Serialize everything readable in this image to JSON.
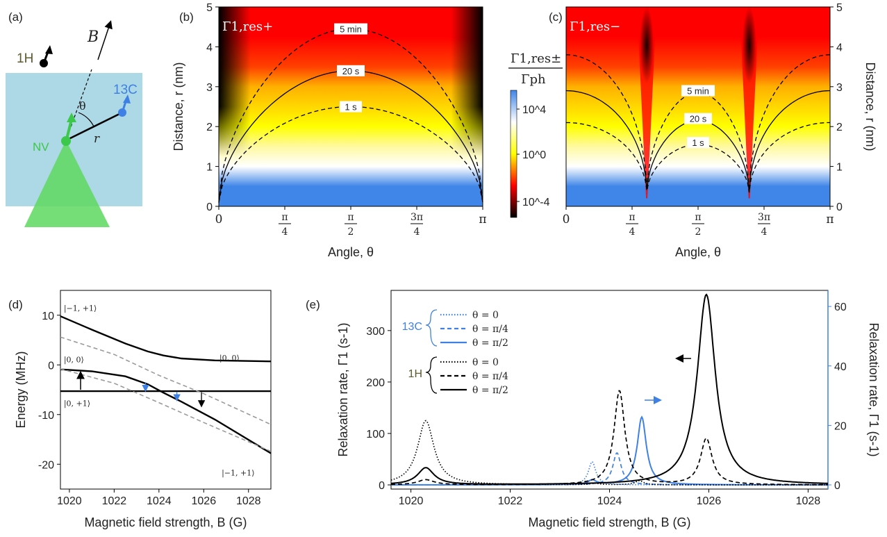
{
  "colors": {
    "black": "#000000",
    "blue": "#3f80e4",
    "olive": "#5b5b2f",
    "green": "#3cc84a",
    "gray_dash": "#9a9a9a",
    "cmap": [
      "#000000",
      "#ff0000",
      "#ffff00",
      "#ffffff",
      "#3f86e8"
    ]
  },
  "panels": {
    "a": {
      "label": "(a)",
      "h": "1H",
      "c": "13C",
      "nv": "NV",
      "b": "B",
      "theta": "θ",
      "r": "r"
    },
    "b": {
      "label": "(b)",
      "map_label": "Γ1,res+"
    },
    "c": {
      "label": "(c)",
      "map_label": "Γ1,res−"
    },
    "d": {
      "label": "(d)"
    },
    "e": {
      "label": "(e)"
    }
  },
  "colorbar": {
    "numerator": "Γ1,res±",
    "denominator": "Γph",
    "ticks": [
      "10^4",
      "10^0",
      "10^-4"
    ]
  },
  "chart_data": [
    {
      "panel": "b",
      "type": "heatmap",
      "xlabel": "Angle, θ",
      "ylabel": "Distance, r (nm)",
      "x_ticks": [
        "0",
        "π/4",
        "π/2",
        "3π/4",
        "π"
      ],
      "y_ticks": [
        "0",
        "1",
        "2",
        "3",
        "4",
        "5"
      ],
      "xlim": [
        0,
        3.14159
      ],
      "ylim": [
        0,
        5
      ],
      "contours": [
        {
          "label": "5 min",
          "style": "dashed",
          "peak_r": 4.35
        },
        {
          "label": "20 s",
          "style": "solid",
          "peak_r": 3.3
        },
        {
          "label": "1 s",
          "style": "dashed",
          "peak_r": 2.4
        }
      ]
    },
    {
      "panel": "c",
      "type": "heatmap",
      "xlabel": "Angle, θ",
      "ylabel": "Distance, r (nm)",
      "x_ticks": [
        "0",
        "π/4",
        "π/2",
        "3π/4",
        "π"
      ],
      "y_ticks": [
        "0",
        "1",
        "2",
        "3",
        "4",
        "5"
      ],
      "xlim": [
        0,
        3.14159
      ],
      "ylim": [
        0,
        5
      ],
      "node_angles": [
        0.96,
        2.18
      ],
      "contours": [
        {
          "label": "5 min",
          "style": "dashed",
          "edge_r": 3.8,
          "mid_r": 2.85
        },
        {
          "label": "20 s",
          "style": "solid",
          "edge_r": 2.9,
          "mid_r": 2.15
        },
        {
          "label": "1 s",
          "style": "dashed",
          "edge_r": 2.1,
          "mid_r": 1.55
        }
      ]
    },
    {
      "panel": "d",
      "type": "line",
      "xlabel": "Magnetic field strength, B (G)",
      "ylabel": "Energy (MHz)",
      "xlim": [
        1019.6,
        1029
      ],
      "ylim": [
        -25,
        15
      ],
      "x_ticks": [
        1020,
        1022,
        1024,
        1026,
        1028
      ],
      "y_ticks": [
        10,
        0,
        -10,
        -20
      ],
      "level_labels": [
        "|−1, +1⟩",
        "|0, 0⟩",
        "|0, +1⟩",
        "|0, 0⟩",
        "|−1, +1⟩"
      ],
      "series": [
        {
          "style": "solid",
          "x": [
            1019.6,
            1021,
            1022.5,
            1023.5,
            1024.2,
            1025,
            1026.5,
            1029
          ],
          "y": [
            9.8,
            7.1,
            4.3,
            2.7,
            1.9,
            1.3,
            0.9,
            0.7
          ]
        },
        {
          "style": "solid",
          "x": [
            1019.6,
            1021,
            1022.5,
            1023.5,
            1024.2,
            1025,
            1026.5,
            1029
          ],
          "y": [
            -0.9,
            -1.3,
            -2.3,
            -3.9,
            -5.6,
            -7.4,
            -11,
            -17.8
          ]
        },
        {
          "style": "solid",
          "x": [
            1019.6,
            1029
          ],
          "y": [
            -5.3,
            -5.3
          ]
        },
        {
          "style": "dashed",
          "x": [
            1019.6,
            1022,
            1024,
            1026,
            1029
          ],
          "y": [
            5.6,
            2.1,
            -2.1,
            -5.8,
            -12
          ]
        },
        {
          "style": "dashed",
          "x": [
            1019.6,
            1022,
            1024,
            1026,
            1029
          ],
          "y": [
            -0.8,
            -3.7,
            -7.6,
            -11.6,
            -17.4
          ]
        }
      ]
    },
    {
      "panel": "e",
      "type": "line",
      "xlabel": "Magnetic field strength, B (G)",
      "ylabel": "Relaxation rate, Γ1 (s-1)",
      "ylabel_right": "Relaxation rate, Γ1 (s-1)",
      "xlim": [
        1019.6,
        1028.4
      ],
      "ylim": [
        0,
        370
      ],
      "ylim_right": [
        0,
        64
      ],
      "x_ticks": [
        1020,
        1022,
        1024,
        1026,
        1028
      ],
      "y_ticks": [
        0,
        100,
        200,
        300
      ],
      "y_ticks_right": [
        0,
        20,
        40,
        60
      ],
      "legend_groups": [
        "13C",
        "1H"
      ],
      "series": [
        {
          "name": "θ = 0",
          "group": "13C",
          "axis": "right",
          "style": "dotted",
          "peaks": [
            {
              "x": 1023.65,
              "h": 7.8,
              "w": 0.09
            }
          ]
        },
        {
          "name": "θ = π/4",
          "group": "13C",
          "axis": "right",
          "style": "dashed",
          "peaks": [
            {
              "x": 1024.15,
              "h": 10.8,
              "w": 0.1
            }
          ]
        },
        {
          "name": "θ = π/2",
          "group": "13C",
          "axis": "right",
          "style": "solid",
          "peaks": [
            {
              "x": 1024.65,
              "h": 22.8,
              "w": 0.11
            },
            {
              "x": 1023.65,
              "h": 1.5,
              "w": 0.1
            }
          ]
        },
        {
          "name": "θ = 0",
          "group": "1H",
          "axis": "left",
          "style": "dotted",
          "peaks": [
            {
              "x": 1020.3,
              "h": 125,
              "w": 0.2
            },
            {
              "x": 1023.7,
              "h": 3,
              "w": 0.1
            },
            {
              "x": 1024.6,
              "h": 8,
              "w": 0.1
            }
          ]
        },
        {
          "name": "θ = π/4",
          "group": "1H",
          "axis": "left",
          "style": "dashed",
          "peaks": [
            {
              "x": 1024.2,
              "h": 183,
              "w": 0.13
            },
            {
              "x": 1025.95,
              "h": 90,
              "w": 0.14
            },
            {
              "x": 1020.3,
              "h": 10,
              "w": 0.2
            }
          ]
        },
        {
          "name": "θ = π/2",
          "group": "1H",
          "axis": "left",
          "style": "solid",
          "peaks": [
            {
              "x": 1025.95,
              "h": 370,
              "w": 0.22
            },
            {
              "x": 1020.3,
              "h": 33,
              "w": 0.2
            }
          ]
        }
      ]
    }
  ]
}
